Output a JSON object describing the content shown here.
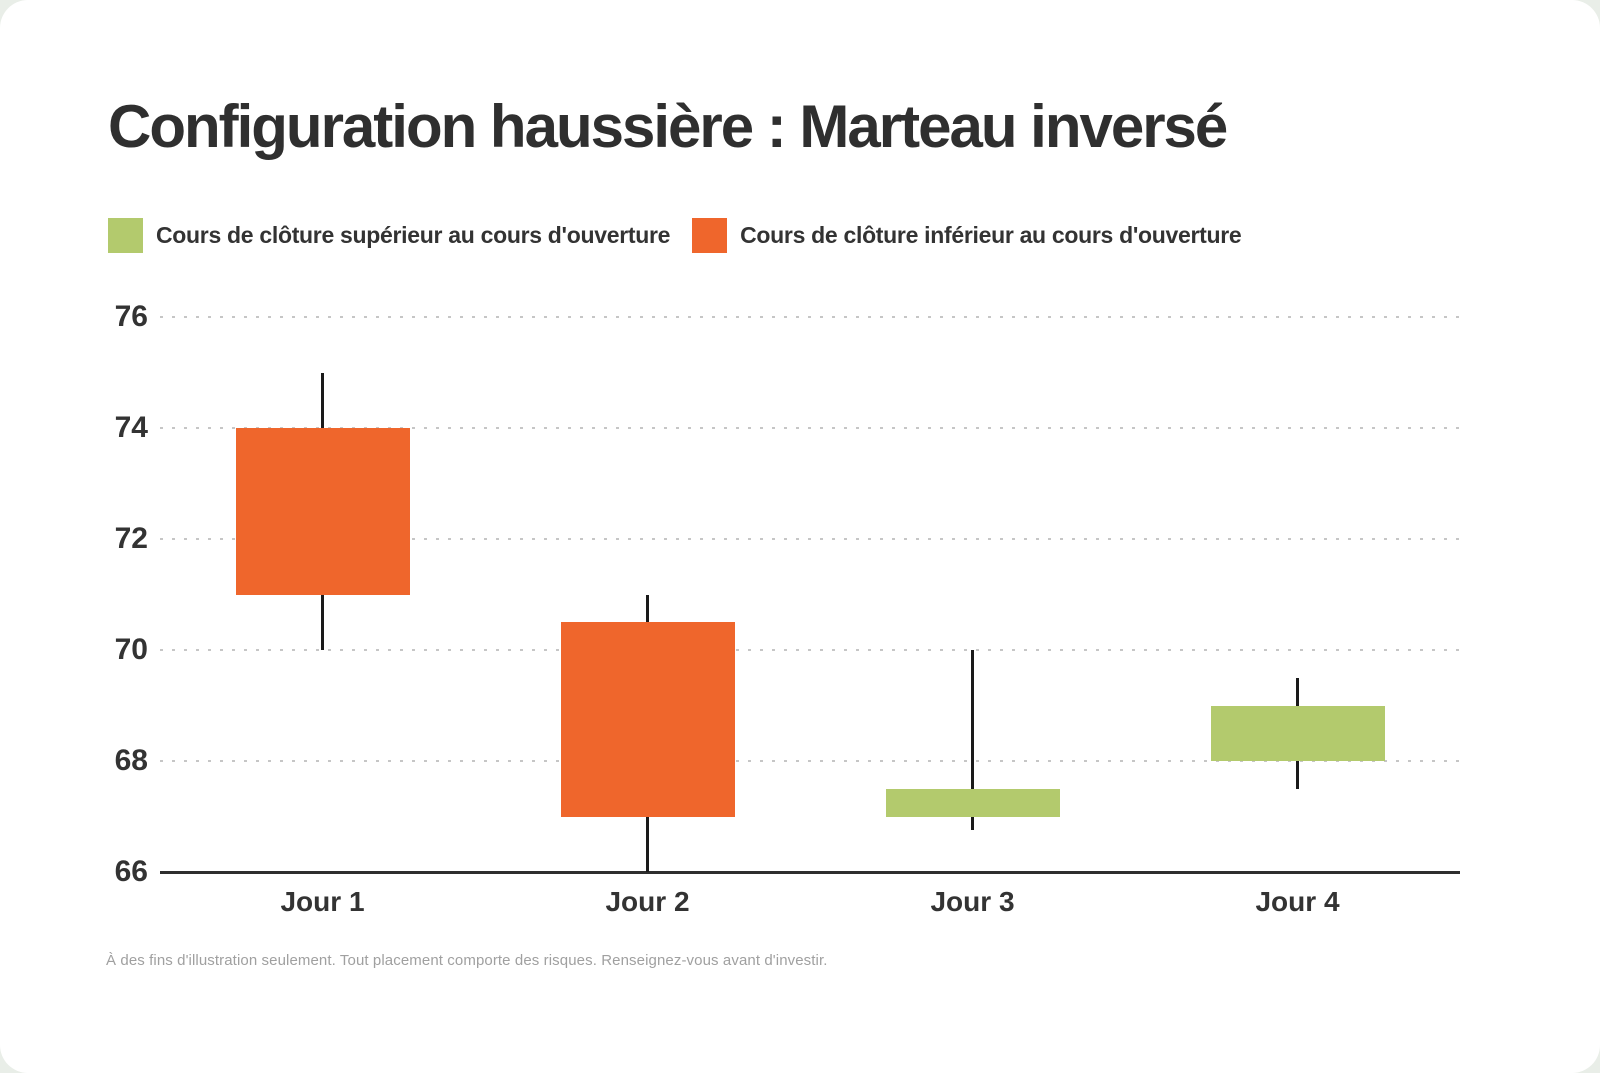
{
  "page": {
    "title": "Configuration haussière : Marteau inversé",
    "footnote": "À des fins d'illustration seulement. Tout placement comporte des risques. Renseignez-vous avant d'investir."
  },
  "legend": [
    {
      "label": "Cours de clôture supérieur au cours d'ouverture",
      "color": "#b3ca6d",
      "meaning": "close-above-open"
    },
    {
      "label": "Cours de clôture inférieur au cours d'ouverture",
      "color": "#ef662c",
      "meaning": "close-below-open"
    }
  ],
  "chart_data": {
    "type": "candlestick",
    "title": "Configuration haussière : Marteau inversé",
    "categories": [
      "Jour 1",
      "Jour 2",
      "Jour 3",
      "Jour 4"
    ],
    "series": [
      {
        "name": "Jour 1",
        "open": 74,
        "high": 75,
        "low": 70,
        "close": 71,
        "direction": "down"
      },
      {
        "name": "Jour 2",
        "open": 70.5,
        "high": 71,
        "low": 66,
        "close": 67,
        "direction": "down"
      },
      {
        "name": "Jour 3",
        "open": 67,
        "high": 70,
        "low": 66.75,
        "close": 67.5,
        "direction": "up"
      },
      {
        "name": "Jour 4",
        "open": 68,
        "high": 69.5,
        "low": 67.5,
        "close": 69,
        "direction": "up"
      }
    ],
    "ylim": [
      66,
      76
    ],
    "yticks": [
      76,
      74,
      72,
      70,
      68,
      66
    ],
    "xlabel": "",
    "ylabel": "",
    "up_color": "#b3ca6d",
    "down_color": "#ef662c",
    "wick_color": "#1a1a1a",
    "grid": "dotted horizontal, solid baseline",
    "legend_position": "top-left"
  }
}
